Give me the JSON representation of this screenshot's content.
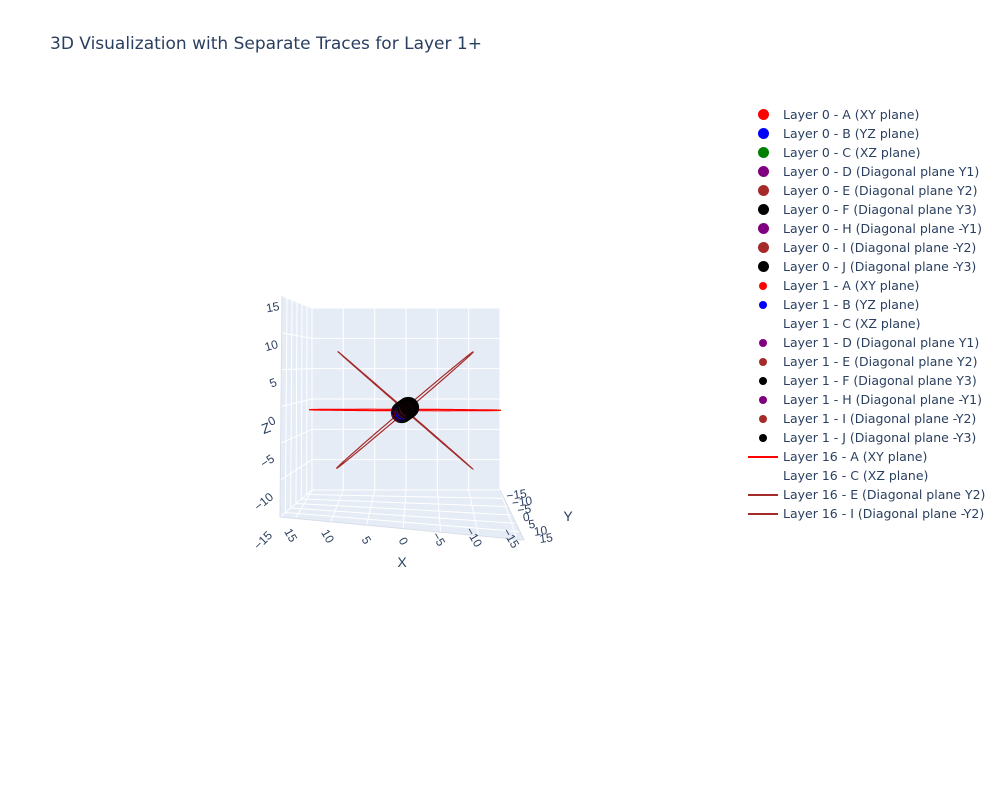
{
  "title": "3D Visualization with Separate Traces for Layer 1+",
  "chart_data": {
    "type": "scatter3d",
    "title": "3D Visualization with Separate Traces for Layer 1+",
    "axes": {
      "x": {
        "label": "X",
        "range": [
          -15,
          15
        ],
        "ticks": [
          15,
          10,
          5,
          0,
          -5,
          -10,
          -15
        ]
      },
      "y": {
        "label": "Y",
        "range": [
          -15,
          15
        ],
        "ticks": [
          -15,
          -10,
          -5,
          0,
          5,
          10,
          15
        ]
      },
      "z": {
        "label": "Z",
        "range": [
          -15,
          15
        ],
        "ticks": [
          15,
          10,
          5,
          0,
          -5,
          -10,
          -15
        ]
      }
    },
    "legend_position": "right",
    "series": [
      {
        "name": "Layer 0 - A (XY plane)",
        "mode": "markers",
        "color": "#ff0000",
        "size": "large"
      },
      {
        "name": "Layer 0 - B (YZ plane)",
        "mode": "markers",
        "color": "#0000ff",
        "size": "large"
      },
      {
        "name": "Layer 0 - C (XZ plane)",
        "mode": "markers",
        "color": "#008000",
        "size": "large"
      },
      {
        "name": "Layer 0 - D (Diagonal plane Y1)",
        "mode": "markers",
        "color": "#800080",
        "size": "large"
      },
      {
        "name": "Layer 0 - E (Diagonal plane Y2)",
        "mode": "markers",
        "color": "#a52a2a",
        "size": "large"
      },
      {
        "name": "Layer 0 - F (Diagonal plane Y3)",
        "mode": "markers",
        "color": "#000000",
        "size": "large"
      },
      {
        "name": "Layer 0 - H (Diagonal plane -Y1)",
        "mode": "markers",
        "color": "#800080",
        "size": "large"
      },
      {
        "name": "Layer 0 - I (Diagonal plane -Y2)",
        "mode": "markers",
        "color": "#a52a2a",
        "size": "large"
      },
      {
        "name": "Layer 0 - J (Diagonal plane -Y3)",
        "mode": "markers",
        "color": "#000000",
        "size": "large"
      },
      {
        "name": "Layer 1 - A (XY plane)",
        "mode": "markers",
        "color": "#ff0000",
        "size": "small"
      },
      {
        "name": "Layer 1 - B (YZ plane)",
        "mode": "markers",
        "color": "#0000ff",
        "size": "small"
      },
      {
        "name": "Layer 1 - C (XZ plane)",
        "mode": "none",
        "color": ""
      },
      {
        "name": "Layer 1 - D (Diagonal plane Y1)",
        "mode": "markers",
        "color": "#800080",
        "size": "small"
      },
      {
        "name": "Layer 1 - E (Diagonal plane Y2)",
        "mode": "markers",
        "color": "#a52a2a",
        "size": "small"
      },
      {
        "name": "Layer 1 - F (Diagonal plane Y3)",
        "mode": "markers",
        "color": "#000000",
        "size": "small"
      },
      {
        "name": "Layer 1 - H (Diagonal plane -Y1)",
        "mode": "markers",
        "color": "#800080",
        "size": "small"
      },
      {
        "name": "Layer 1 - I (Diagonal plane -Y2)",
        "mode": "markers",
        "color": "#a52a2a",
        "size": "small"
      },
      {
        "name": "Layer 1 - J (Diagonal plane -Y3)",
        "mode": "markers",
        "color": "#000000",
        "size": "small"
      },
      {
        "name": "Layer 16 - A (XY plane)",
        "mode": "lines",
        "color": "#ff0000",
        "radius": 14
      },
      {
        "name": "Layer 16 - C (XZ plane)",
        "mode": "none",
        "color": ""
      },
      {
        "name": "Layer 16 - E (Diagonal plane Y2)",
        "mode": "lines",
        "color": "#a52a2a",
        "radius": 14
      },
      {
        "name": "Layer 16 - I (Diagonal plane -Y2)",
        "mode": "lines",
        "color": "#a52a2a",
        "radius": 14
      }
    ]
  }
}
